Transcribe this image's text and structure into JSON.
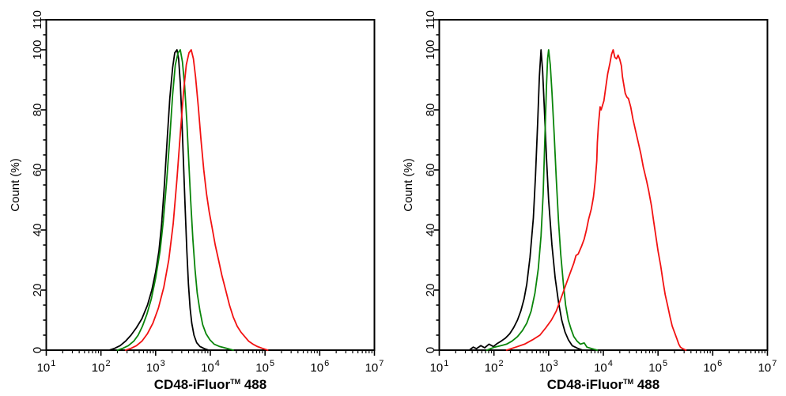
{
  "figure": {
    "background": "#ffffff",
    "axis_color": "#000000",
    "panel_count": 2
  },
  "chart_data": [
    {
      "panel": "left",
      "type": "line",
      "x_axis": {
        "scale": "log10",
        "base_label": "10",
        "exponents": [
          1,
          2,
          3,
          4,
          5,
          6,
          7
        ],
        "title_full": "CD48-iFluor™ 488",
        "title_prefix": "CD48-iFluor",
        "title_sup": "TM",
        "title_suffix": " 488"
      },
      "y_axis": {
        "title": "Count  (%)",
        "range": [
          0,
          110
        ],
        "major_ticks": [
          0,
          20,
          40,
          60,
          80,
          100,
          110
        ],
        "minor_step": 5
      },
      "grid": false,
      "legend": "none",
      "series": [
        {
          "name": "black",
          "color": "#000000",
          "points": [
            [
              2.15,
              0
            ],
            [
              2.25,
              0.6
            ],
            [
              2.35,
              1.5
            ],
            [
              2.45,
              3
            ],
            [
              2.55,
              5
            ],
            [
              2.65,
              7.5
            ],
            [
              2.75,
              10.5
            ],
            [
              2.85,
              15
            ],
            [
              2.93,
              20
            ],
            [
              3.0,
              26
            ],
            [
              3.06,
              33
            ],
            [
              3.11,
              42
            ],
            [
              3.16,
              55
            ],
            [
              3.21,
              70
            ],
            [
              3.26,
              84
            ],
            [
              3.31,
              94
            ],
            [
              3.35,
              99
            ],
            [
              3.39,
              100
            ],
            [
              3.42,
              97
            ],
            [
              3.45,
              89
            ],
            [
              3.48,
              77
            ],
            [
              3.51,
              62
            ],
            [
              3.54,
              47
            ],
            [
              3.57,
              33
            ],
            [
              3.6,
              22
            ],
            [
              3.63,
              14
            ],
            [
              3.66,
              9
            ],
            [
              3.7,
              5
            ],
            [
              3.75,
              2.5
            ],
            [
              3.81,
              1.2
            ],
            [
              3.89,
              0.5
            ],
            [
              3.97,
              0
            ]
          ]
        },
        {
          "name": "green",
          "color": "#0a850a",
          "points": [
            [
              2.3,
              0
            ],
            [
              2.4,
              0.6
            ],
            [
              2.5,
              1.5
            ],
            [
              2.6,
              3
            ],
            [
              2.68,
              5
            ],
            [
              2.76,
              8
            ],
            [
              2.84,
              12
            ],
            [
              2.92,
              17
            ],
            [
              3.0,
              24
            ],
            [
              3.08,
              33
            ],
            [
              3.14,
              43
            ],
            [
              3.2,
              56
            ],
            [
              3.26,
              71
            ],
            [
              3.31,
              85
            ],
            [
              3.36,
              95
            ],
            [
              3.41,
              99
            ],
            [
              3.45,
              100
            ],
            [
              3.49,
              96
            ],
            [
              3.53,
              88
            ],
            [
              3.57,
              76
            ],
            [
              3.6,
              65
            ],
            [
              3.64,
              50
            ],
            [
              3.68,
              37
            ],
            [
              3.72,
              27
            ],
            [
              3.76,
              19
            ],
            [
              3.81,
              13
            ],
            [
              3.86,
              8.5
            ],
            [
              3.92,
              5.5
            ],
            [
              3.99,
              3.5
            ],
            [
              4.07,
              2
            ],
            [
              4.17,
              1.2
            ],
            [
              4.3,
              0.6
            ],
            [
              4.42,
              0
            ]
          ]
        },
        {
          "name": "red",
          "color": "#f21212",
          "points": [
            [
              2.45,
              0
            ],
            [
              2.55,
              0.6
            ],
            [
              2.65,
              1.5
            ],
            [
              2.75,
              3
            ],
            [
              2.85,
              5.5
            ],
            [
              2.95,
              9
            ],
            [
              3.05,
              14
            ],
            [
              3.15,
              21
            ],
            [
              3.24,
              30
            ],
            [
              3.32,
              42
            ],
            [
              3.39,
              57
            ],
            [
              3.45,
              72
            ],
            [
              3.51,
              86
            ],
            [
              3.56,
              95
            ],
            [
              3.61,
              99
            ],
            [
              3.65,
              100
            ],
            [
              3.69,
              97
            ],
            [
              3.73,
              91
            ],
            [
              3.78,
              81
            ],
            [
              3.83,
              70
            ],
            [
              3.88,
              60
            ],
            [
              3.93,
              52
            ],
            [
              3.98,
              46
            ],
            [
              4.03,
              41
            ],
            [
              4.09,
              35
            ],
            [
              4.15,
              30
            ],
            [
              4.21,
              25
            ],
            [
              4.28,
              20
            ],
            [
              4.35,
              15
            ],
            [
              4.42,
              11
            ],
            [
              4.49,
              8
            ],
            [
              4.56,
              6
            ],
            [
              4.63,
              4.5
            ],
            [
              4.7,
              3
            ],
            [
              4.78,
              2
            ],
            [
              4.86,
              1.2
            ],
            [
              4.95,
              0.6
            ],
            [
              5.05,
              0
            ]
          ]
        }
      ]
    },
    {
      "panel": "right",
      "type": "line",
      "x_axis": {
        "scale": "log10",
        "base_label": "10",
        "exponents": [
          1,
          2,
          3,
          4,
          5,
          6,
          7
        ],
        "title_full": "CD48-iFluor™ 488",
        "title_prefix": "CD48-iFluor",
        "title_sup": "TM",
        "title_suffix": " 488"
      },
      "y_axis": {
        "title": "Count  (%)",
        "range": [
          0,
          110
        ],
        "major_ticks": [
          0,
          20,
          40,
          60,
          80,
          100,
          110
        ],
        "minor_step": 5
      },
      "grid": false,
      "legend": "none",
      "series": [
        {
          "name": "black",
          "color": "#000000",
          "points": [
            [
              1.55,
              0
            ],
            [
              1.62,
              1
            ],
            [
              1.68,
              0.5
            ],
            [
              1.76,
              1.5
            ],
            [
              1.83,
              0.8
            ],
            [
              1.91,
              2
            ],
            [
              1.99,
              1.2
            ],
            [
              2.06,
              2.2
            ],
            [
              2.13,
              3
            ],
            [
              2.21,
              4
            ],
            [
              2.29,
              5.5
            ],
            [
              2.36,
              7.5
            ],
            [
              2.43,
              10
            ],
            [
              2.49,
              13
            ],
            [
              2.55,
              17
            ],
            [
              2.6,
              22
            ],
            [
              2.66,
              31
            ],
            [
              2.72,
              44
            ],
            [
              2.76,
              58
            ],
            [
              2.8,
              76
            ],
            [
              2.83,
              91
            ],
            [
              2.86,
              100
            ],
            [
              2.89,
              93
            ],
            [
              2.92,
              81
            ],
            [
              2.96,
              64
            ],
            [
              3.0,
              50
            ],
            [
              3.06,
              35
            ],
            [
              3.12,
              24
            ],
            [
              3.18,
              16
            ],
            [
              3.24,
              10
            ],
            [
              3.3,
              6
            ],
            [
              3.36,
              3.5
            ],
            [
              3.43,
              1.5
            ],
            [
              3.53,
              0.6
            ],
            [
              3.62,
              0
            ]
          ]
        },
        {
          "name": "green",
          "color": "#0a850a",
          "points": [
            [
              1.87,
              0
            ],
            [
              2.01,
              1
            ],
            [
              2.13,
              1.5
            ],
            [
              2.23,
              2
            ],
            [
              2.33,
              3
            ],
            [
              2.43,
              4.5
            ],
            [
              2.52,
              6.5
            ],
            [
              2.6,
              9
            ],
            [
              2.68,
              13
            ],
            [
              2.75,
              19
            ],
            [
              2.81,
              27
            ],
            [
              2.86,
              38
            ],
            [
              2.9,
              52
            ],
            [
              2.93,
              70
            ],
            [
              2.96,
              88
            ],
            [
              2.98,
              97
            ],
            [
              3.0,
              100
            ],
            [
              3.03,
              95
            ],
            [
              3.06,
              86
            ],
            [
              3.1,
              72
            ],
            [
              3.14,
              57
            ],
            [
              3.18,
              43
            ],
            [
              3.22,
              32
            ],
            [
              3.27,
              22
            ],
            [
              3.31,
              15
            ],
            [
              3.36,
              10
            ],
            [
              3.41,
              7
            ],
            [
              3.46,
              4.5
            ],
            [
              3.52,
              3
            ],
            [
              3.58,
              2
            ],
            [
              3.65,
              2.4
            ],
            [
              3.7,
              1
            ],
            [
              3.79,
              0.5
            ],
            [
              3.89,
              0
            ]
          ]
        },
        {
          "name": "red",
          "color": "#f21212",
          "points": [
            [
              2.23,
              0
            ],
            [
              2.4,
              1
            ],
            [
              2.56,
              2
            ],
            [
              2.71,
              3.5
            ],
            [
              2.84,
              5
            ],
            [
              2.95,
              7.5
            ],
            [
              3.05,
              10
            ],
            [
              3.14,
              13
            ],
            [
              3.21,
              16.5
            ],
            [
              3.28,
              20
            ],
            [
              3.34,
              23
            ],
            [
              3.4,
              26
            ],
            [
              3.46,
              29
            ],
            [
              3.5,
              31.5
            ],
            [
              3.54,
              32
            ],
            [
              3.6,
              34.5
            ],
            [
              3.65,
              37
            ],
            [
              3.69,
              40
            ],
            [
              3.73,
              43.5
            ],
            [
              3.78,
              47
            ],
            [
              3.82,
              51
            ],
            [
              3.85,
              56
            ],
            [
              3.88,
              63
            ],
            [
              3.89,
              69
            ],
            [
              3.91,
              75
            ],
            [
              3.93,
              79
            ],
            [
              3.94,
              81
            ],
            [
              3.96,
              80
            ],
            [
              4.01,
              83
            ],
            [
              4.04,
              87
            ],
            [
              4.08,
              92
            ],
            [
              4.12,
              95.5
            ],
            [
              4.15,
              98.5
            ],
            [
              4.18,
              100
            ],
            [
              4.21,
              97.5
            ],
            [
              4.24,
              97
            ],
            [
              4.27,
              98.2
            ],
            [
              4.3,
              96.8
            ],
            [
              4.33,
              94.7
            ],
            [
              4.35,
              91
            ],
            [
              4.4,
              85.5
            ],
            [
              4.43,
              84.3
            ],
            [
              4.46,
              83.7
            ],
            [
              4.5,
              81
            ],
            [
              4.54,
              77
            ],
            [
              4.59,
              73
            ],
            [
              4.64,
              69
            ],
            [
              4.69,
              65
            ],
            [
              4.73,
              61
            ],
            [
              4.79,
              56.5
            ],
            [
              4.83,
              53
            ],
            [
              4.88,
              48
            ],
            [
              4.92,
              43
            ],
            [
              4.96,
              38
            ],
            [
              5.0,
              33
            ],
            [
              5.05,
              28
            ],
            [
              5.09,
              23
            ],
            [
              5.13,
              18.5
            ],
            [
              5.18,
              14.5
            ],
            [
              5.22,
              11
            ],
            [
              5.26,
              8
            ],
            [
              5.31,
              5.5
            ],
            [
              5.35,
              3.5
            ],
            [
              5.38,
              2
            ],
            [
              5.41,
              1
            ],
            [
              5.45,
              0.5
            ],
            [
              5.51,
              0
            ]
          ]
        }
      ]
    }
  ]
}
